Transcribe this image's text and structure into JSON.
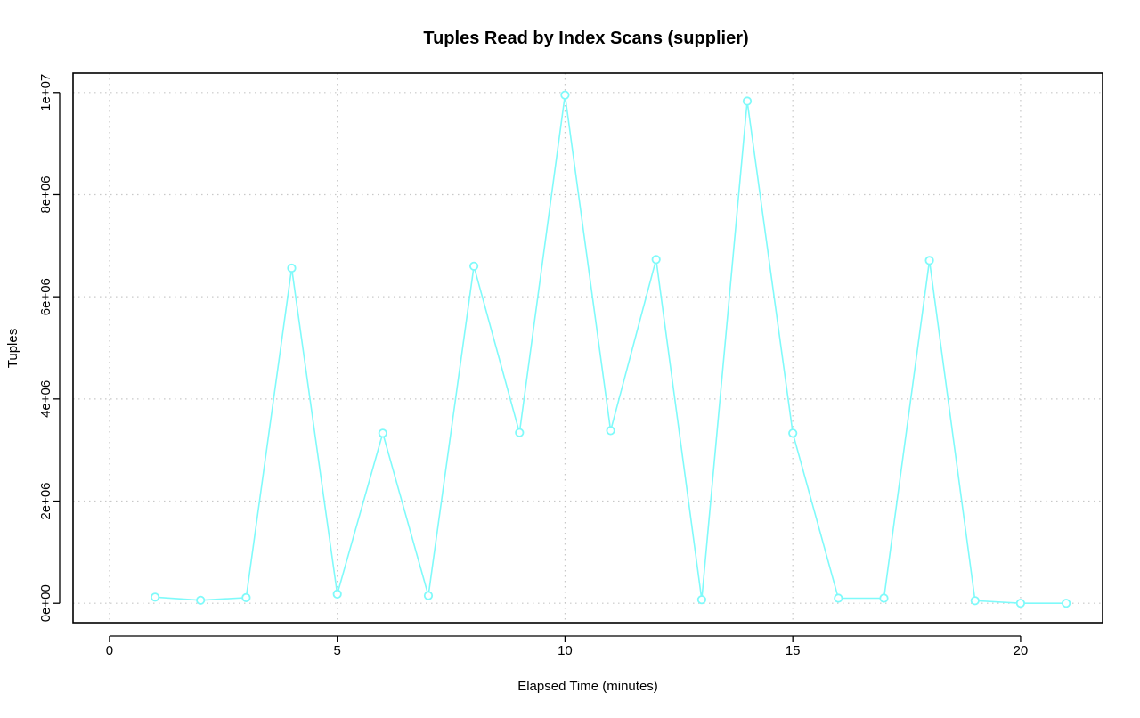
{
  "chart_data": {
    "type": "line",
    "title": "Tuples Read by Index Scans (supplier)",
    "xlabel": "Elapsed Time (minutes)",
    "ylabel": "Tuples",
    "xlim": [
      -0.8,
      21.8
    ],
    "ylim": [
      -380000,
      10380000
    ],
    "x_ticks": [
      0,
      5,
      10,
      15,
      20
    ],
    "x_tick_labels": [
      "0",
      "5",
      "10",
      "15",
      "20"
    ],
    "y_ticks": [
      0,
      2000000,
      4000000,
      6000000,
      8000000,
      10000000
    ],
    "y_tick_labels": [
      "0e+00",
      "2e+06",
      "4e+06",
      "6e+06",
      "8e+06",
      "1e+07"
    ],
    "grid": true,
    "series": [
      {
        "color": "#7ffafa",
        "marker": "open-circle",
        "x": [
          1,
          2,
          3,
          4,
          5,
          6,
          7,
          8,
          9,
          10,
          11,
          12,
          13,
          14,
          15,
          16,
          17,
          18,
          19,
          20,
          21
        ],
        "y": [
          120000,
          60000,
          110000,
          6560000,
          180000,
          3330000,
          150000,
          6600000,
          3340000,
          9950000,
          3380000,
          6730000,
          70000,
          9830000,
          3330000,
          100000,
          100000,
          6710000,
          50000,
          0,
          0
        ]
      }
    ]
  }
}
